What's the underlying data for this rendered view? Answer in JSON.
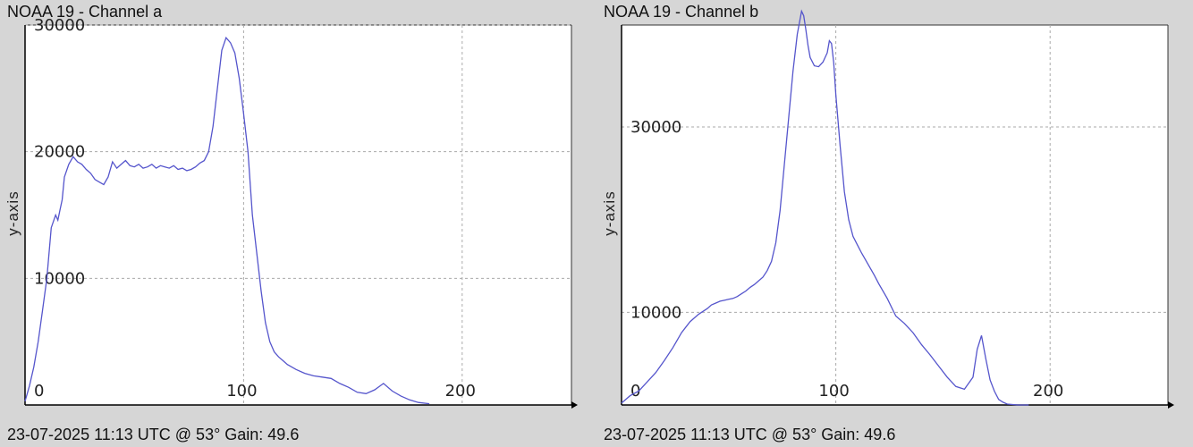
{
  "chart_data": [
    {
      "type": "line",
      "title": "NOAA 19 - Channel a",
      "footer": "23-07-2025 11:13 UTC @ 53° Gain: 49.6",
      "ylabel": "y-axis",
      "xlabel": "",
      "xlim": [
        0,
        250
      ],
      "ylim": [
        0,
        30000
      ],
      "xticks": [
        0,
        100,
        200
      ],
      "yticks": [
        10000,
        20000,
        30000
      ],
      "grid": true,
      "color": "#5555cc",
      "series": [
        {
          "x": [
            0,
            2,
            4,
            6,
            8,
            10,
            12,
            14,
            15,
            16,
            17,
            18,
            20,
            22,
            24,
            26,
            28,
            30,
            32,
            34,
            36,
            38,
            40,
            42,
            44,
            46,
            48,
            50,
            52,
            54,
            56,
            58,
            60,
            62,
            64,
            66,
            68,
            70,
            72,
            74,
            76,
            78,
            80,
            82,
            84,
            86,
            88,
            90,
            92,
            94,
            96,
            98,
            100,
            102,
            104,
            106,
            108,
            110,
            112,
            114,
            116,
            118,
            120,
            124,
            128,
            132,
            136,
            140,
            144,
            148,
            152,
            156,
            160,
            164,
            168,
            172,
            176,
            180,
            185
          ],
          "y": [
            300,
            1500,
            3000,
            5000,
            7500,
            10000,
            14000,
            15000,
            14600,
            15400,
            16200,
            18000,
            19000,
            19600,
            19200,
            19000,
            18600,
            18300,
            17800,
            17600,
            17400,
            18000,
            19200,
            18700,
            19000,
            19300,
            18900,
            18800,
            19000,
            18700,
            18800,
            19000,
            18700,
            18900,
            18800,
            18700,
            18900,
            18600,
            18700,
            18500,
            18600,
            18800,
            19100,
            19300,
            20000,
            22000,
            25000,
            28000,
            29000,
            28600,
            27800,
            25800,
            23000,
            20000,
            15000,
            12000,
            9000,
            6500,
            5000,
            4200,
            3800,
            3500,
            3200,
            2800,
            2500,
            2300,
            2200,
            2100,
            1700,
            1400,
            1000,
            900,
            1200,
            1700,
            1100,
            700,
            400,
            200,
            100
          ]
        }
      ]
    },
    {
      "type": "line",
      "title": "NOAA 19 - Channel b",
      "footer": "23-07-2025 11:13 UTC @ 53° Gain: 49.6",
      "ylabel": "y-axis",
      "xlabel": "",
      "xlim": [
        0,
        255
      ],
      "ylim": [
        0,
        41000
      ],
      "xticks": [
        0,
        100,
        200
      ],
      "yticks": [
        10000,
        30000
      ],
      "grid": true,
      "color": "#5555cc",
      "series": [
        {
          "x": [
            0,
            4,
            8,
            12,
            16,
            20,
            24,
            28,
            32,
            36,
            40,
            42,
            44,
            46,
            48,
            50,
            52,
            54,
            56,
            58,
            60,
            62,
            64,
            66,
            68,
            70,
            72,
            74,
            76,
            78,
            80,
            82,
            84,
            85,
            86,
            87,
            88,
            90,
            92,
            94,
            96,
            97,
            98,
            99,
            100,
            102,
            104,
            106,
            108,
            110,
            112,
            114,
            116,
            118,
            120,
            124,
            128,
            132,
            136,
            140,
            144,
            148,
            152,
            156,
            160,
            164,
            166,
            168,
            170,
            172,
            174,
            176,
            178,
            180,
            185,
            190
          ],
          "y": [
            200,
            1000,
            1500,
            2500,
            3500,
            4800,
            6200,
            7800,
            9000,
            9800,
            10400,
            10800,
            11000,
            11200,
            11300,
            11400,
            11500,
            11700,
            12000,
            12300,
            12700,
            13000,
            13400,
            13800,
            14500,
            15500,
            17500,
            21000,
            26000,
            31000,
            36000,
            40000,
            42500,
            42000,
            40500,
            38800,
            37500,
            36600,
            36500,
            37000,
            38000,
            39300,
            39000,
            37000,
            33500,
            28000,
            23000,
            20000,
            18200,
            17300,
            16400,
            15600,
            14800,
            14000,
            13100,
            11500,
            9600,
            8800,
            7800,
            6500,
            5400,
            4200,
            3000,
            2000,
            1700,
            3000,
            6000,
            7500,
            5000,
            2700,
            1500,
            600,
            300,
            100,
            0,
            0
          ]
        }
      ]
    }
  ]
}
